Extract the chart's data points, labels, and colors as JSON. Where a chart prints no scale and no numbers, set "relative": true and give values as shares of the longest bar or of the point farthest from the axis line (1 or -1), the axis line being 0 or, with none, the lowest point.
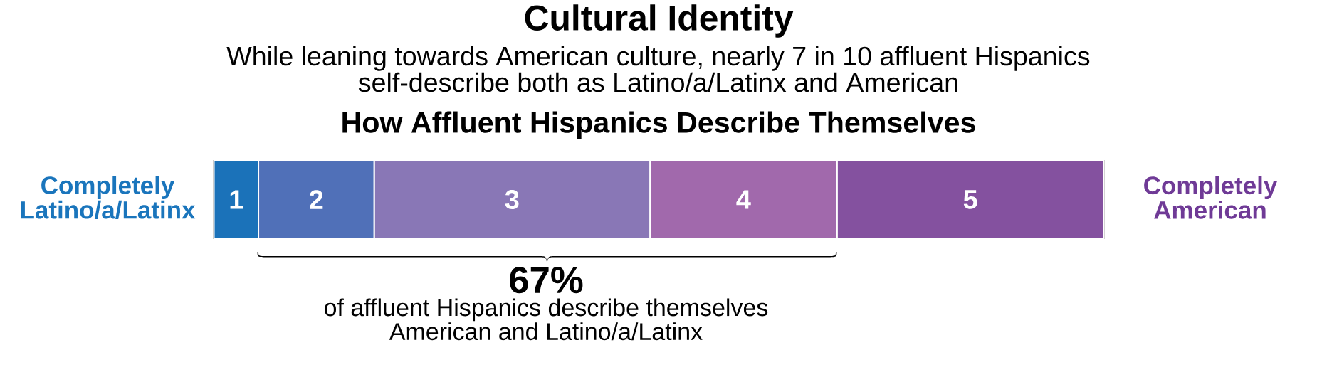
{
  "chart_data": {
    "type": "bar",
    "orientation": "horizontal",
    "stacked": true,
    "relative": true,
    "title": "Cultural Identity",
    "subtitle": "While leaning towards American culture, nearly 7 in 10 affluent Hispanics self-describe both as Latino/a/Latinx and American",
    "categories": [
      null
    ],
    "series": [
      {
        "name": "1",
        "color": "#1b72b9",
        "values": [
          0.05
        ]
      },
      {
        "name": "2",
        "color": "#5070b8",
        "values": [
          0.13
        ]
      },
      {
        "name": "3",
        "color": "#8977b6",
        "values": [
          0.31
        ]
      },
      {
        "name": "4",
        "color": "#a169ac",
        "values": [
          0.21
        ]
      },
      {
        "name": "5",
        "color": "#84519f",
        "values": [
          0.3
        ]
      }
    ],
    "annotations": [
      "How Affluent Hispanics Describe Themselves",
      "Completely Latino/a/Latinx",
      "Completely American",
      "67%",
      "of affluent Hispanics describe themselves American and Latino/a/Latinx"
    ]
  }
}
